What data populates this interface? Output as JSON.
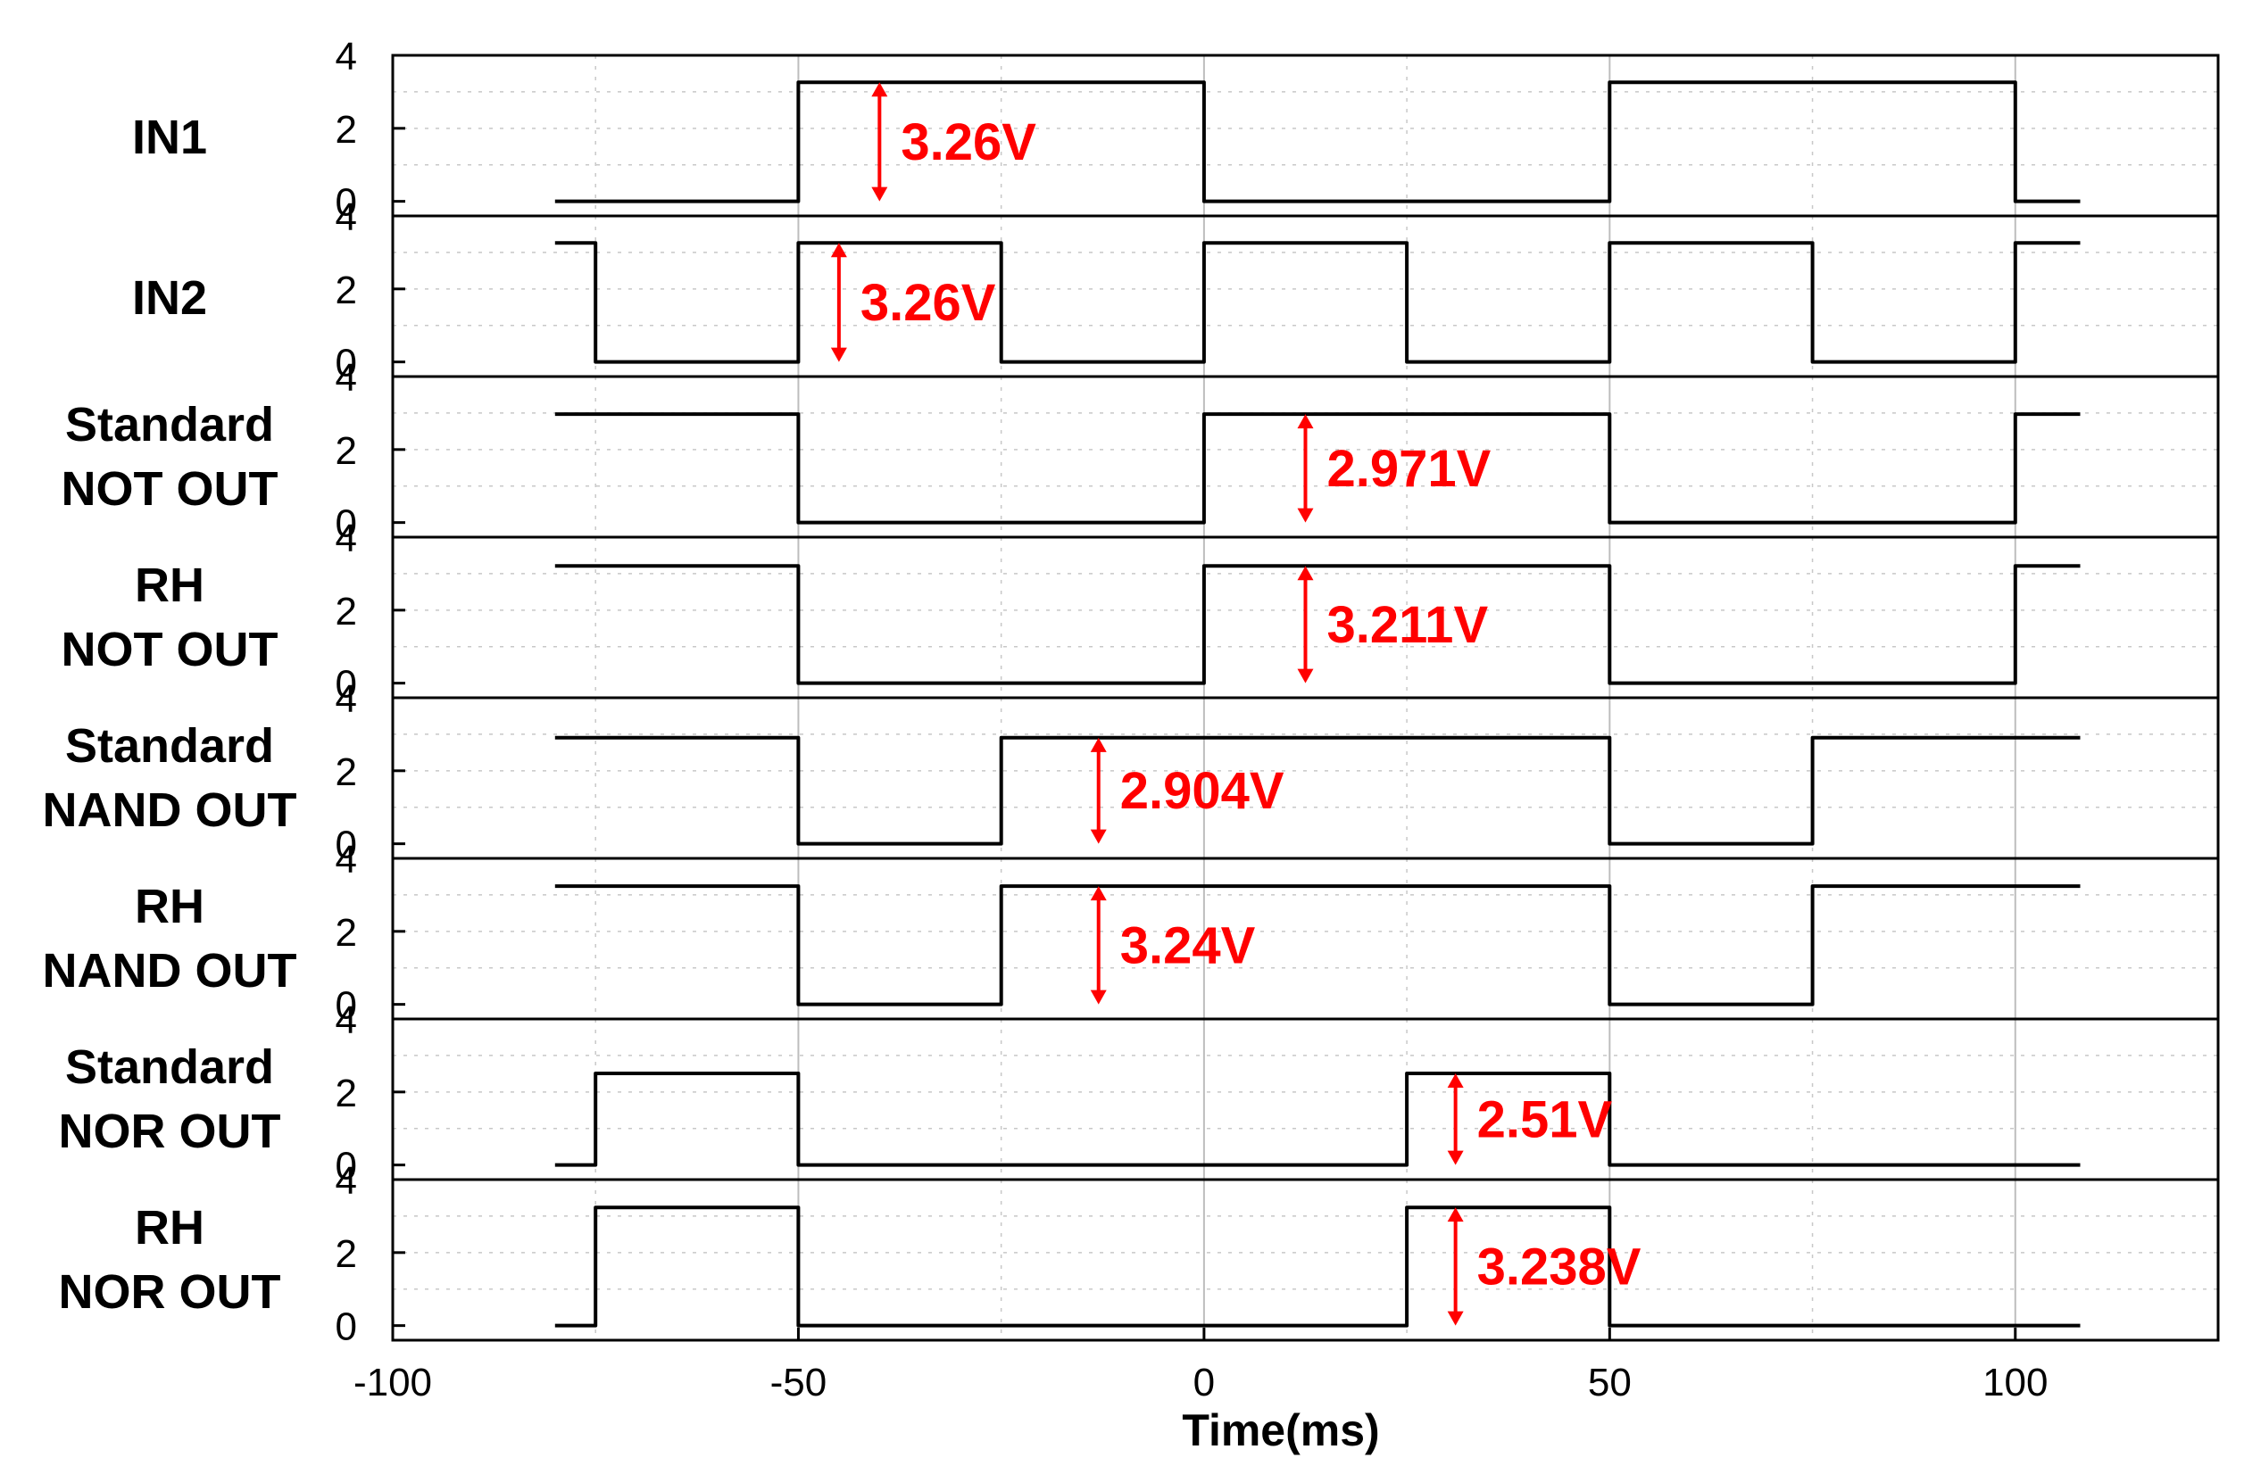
{
  "chart_data": {
    "type": "line",
    "title": "",
    "xlabel": "Time(ms)",
    "ylabel": "",
    "xlim": [
      -100,
      125
    ],
    "xticks": [
      -100,
      -50,
      0,
      50,
      100
    ],
    "ylim": [
      -0.4,
      4
    ],
    "yticks": [
      0,
      2,
      4
    ],
    "grid": true,
    "line_color": "#000000",
    "annotation_color": "#ff0000",
    "series": [
      {
        "name": "IN1",
        "x": [
          -80,
          -50,
          -50,
          0,
          0,
          50,
          50,
          100,
          100,
          108
        ],
        "y": [
          0,
          0,
          3.26,
          3.26,
          0,
          0,
          3.26,
          3.26,
          0,
          0
        ],
        "annotation": {
          "text": "3.26V",
          "x": -40,
          "low": 0,
          "high": 3.26
        }
      },
      {
        "name": "IN2",
        "x": [
          -80,
          -75,
          -75,
          -50,
          -50,
          -25,
          -25,
          0,
          0,
          25,
          25,
          50,
          50,
          75,
          75,
          100,
          100,
          108
        ],
        "y": [
          3.26,
          3.26,
          0,
          0,
          3.26,
          3.26,
          0,
          0,
          3.26,
          3.26,
          0,
          0,
          3.26,
          3.26,
          0,
          0,
          3.26,
          3.26
        ],
        "annotation": {
          "text": "3.26V",
          "x": -45,
          "low": 0,
          "high": 3.26
        }
      },
      {
        "name": "Standard NOT OUT",
        "x": [
          -80,
          -50,
          -50,
          0,
          0,
          50,
          50,
          100,
          100,
          108
        ],
        "y": [
          2.971,
          2.971,
          0,
          0,
          2.971,
          2.971,
          0,
          0,
          2.971,
          2.971
        ],
        "annotation": {
          "text": "2.971V",
          "x": 12.5,
          "low": 0,
          "high": 2.971
        }
      },
      {
        "name": "RH NOT OUT",
        "x": [
          -80,
          -50,
          -50,
          0,
          0,
          50,
          50,
          100,
          100,
          108
        ],
        "y": [
          3.211,
          3.211,
          0,
          0,
          3.211,
          3.211,
          0,
          0,
          3.211,
          3.211
        ],
        "annotation": {
          "text": "3.211V",
          "x": 12.5,
          "low": 0,
          "high": 3.211
        }
      },
      {
        "name": "Standard NAND OUT",
        "x": [
          -80,
          -50,
          -50,
          -25,
          -25,
          50,
          50,
          75,
          75,
          108
        ],
        "y": [
          2.904,
          2.904,
          0,
          0,
          2.904,
          2.904,
          0,
          0,
          2.904,
          2.904
        ],
        "annotation": {
          "text": "2.904V",
          "x": -13,
          "low": 0,
          "high": 2.904
        }
      },
      {
        "name": "RH NAND OUT",
        "x": [
          -80,
          -50,
          -50,
          -25,
          -25,
          50,
          50,
          75,
          75,
          108
        ],
        "y": [
          3.24,
          3.24,
          0,
          0,
          3.24,
          3.24,
          0,
          0,
          3.24,
          3.24
        ],
        "annotation": {
          "text": "3.24V",
          "x": -13,
          "low": 0,
          "high": 3.24
        }
      },
      {
        "name": "Standard NOR OUT",
        "x": [
          -80,
          -75,
          -75,
          -50,
          -50,
          25,
          25,
          50,
          50,
          108
        ],
        "y": [
          0,
          0,
          2.51,
          2.51,
          0,
          0,
          2.51,
          2.51,
          0,
          0
        ],
        "annotation": {
          "text": "2.51V",
          "x": 31,
          "low": 0,
          "high": 2.51
        }
      },
      {
        "name": "RH NOR OUT",
        "x": [
          -80,
          -75,
          -75,
          -50,
          -50,
          25,
          25,
          50,
          50,
          108
        ],
        "y": [
          0,
          0,
          3.238,
          3.238,
          0,
          0,
          3.238,
          3.238,
          0,
          0
        ],
        "annotation": {
          "text": "3.238V",
          "x": 31,
          "low": 0,
          "high": 3.238
        }
      }
    ],
    "row_labels": [
      [
        "IN1"
      ],
      [
        "IN2"
      ],
      [
        "Standard",
        "NOT  OUT"
      ],
      [
        "RH",
        "NOT  OUT"
      ],
      [
        "Standard",
        "NAND OUT"
      ],
      [
        "RH",
        "NAND OUT"
      ],
      [
        "Standard",
        "NOR OUT"
      ],
      [
        "RH",
        "NOR OUT"
      ]
    ]
  }
}
